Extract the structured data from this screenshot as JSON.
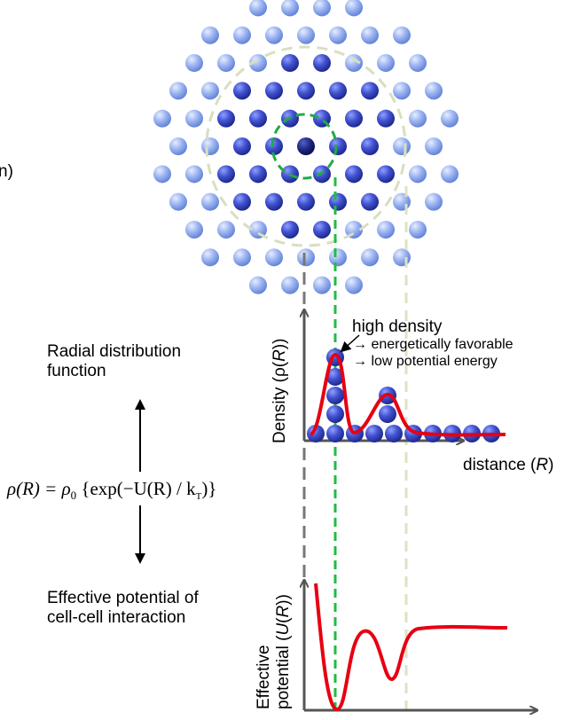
{
  "header_fragment": "n)",
  "annotation": {
    "lines": [
      "high density",
      "→ energetically favorable",
      "→ low potential energy"
    ]
  },
  "density_axis": {
    "label": [
      "Density (ρ(",
      "R",
      "))"
    ]
  },
  "distance_axis": {
    "label": [
      "distance (",
      "R",
      ")"
    ]
  },
  "rdf_label": [
    "Radial distribution",
    "function"
  ],
  "formula": [
    "ρ(R) = ρ",
    "0",
    " {exp(−U(R) / k",
    "T",
    ")}"
  ],
  "potential_label": [
    "Effective potential of",
    "cell-cell interaction"
  ],
  "potential_axis": {
    "label": [
      "Effective",
      "potential (",
      "U",
      "(",
      "R",
      "))"
    ]
  }
}
